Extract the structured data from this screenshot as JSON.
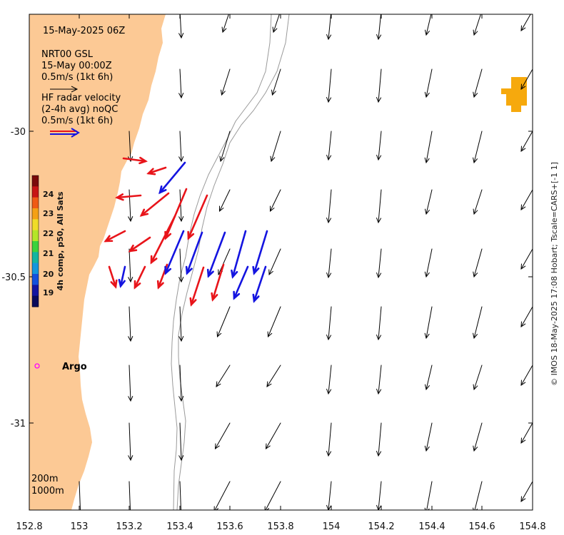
{
  "map": {
    "timestamp": "15-May-2025 06Z",
    "model_legend": {
      "lines": [
        "NRT00 GSL",
        "15-May 00:00Z",
        "0.5m/s (1kt 6h)"
      ]
    },
    "radar_legend": {
      "lines": [
        "HF radar velocity",
        "(2-4h avg) noQC",
        "0.5m/s (1kt 6h)"
      ]
    },
    "x_ticks": [
      "152.8",
      "153",
      "153.2",
      "153.4",
      "153.6",
      "153.8",
      "154",
      "154.2",
      "154.4",
      "154.6",
      "154.8"
    ],
    "y_ticks": [
      "-30",
      "-30.5",
      "-31"
    ],
    "colorbar": {
      "title": "4h comp, p50, All Sats",
      "ticks": [
        "19",
        "20",
        "21",
        "22",
        "23",
        "24"
      ]
    },
    "argo_label": "Argo",
    "depth_labels": [
      "200m",
      "1000m"
    ],
    "credit": "© IMOS 18-May-2025 17:08 Hobart; Tscale=CARS+[-1 1]",
    "colors": {
      "land": "#fcc995",
      "model_arrow": "#000000",
      "radar_red": "#e8141a",
      "radar_blue": "#1414e0",
      "argo": "#ff00ff",
      "sst_patch": "#f6a90d",
      "isobath": "#9a9a9a"
    },
    "extent": {
      "lon": [
        152.8,
        154.8
      ],
      "lat": [
        -31.3,
        -29.6
      ]
    }
  }
}
